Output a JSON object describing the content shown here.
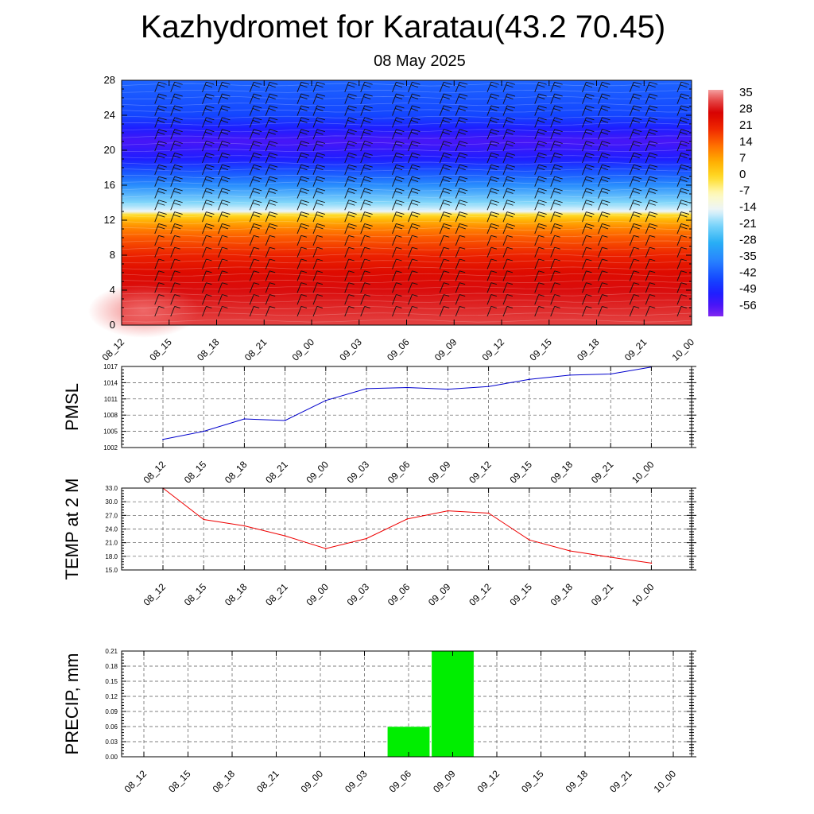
{
  "page": {
    "title": "Kazhydromet for Karatau(43.2 70.45)",
    "date": "08 May 2025"
  },
  "chart_data": [
    {
      "type": "heatmap",
      "title": "",
      "time_labels": [
        "08_12",
        "08_15",
        "08_18",
        "08_21",
        "09_00",
        "09_03",
        "09_06",
        "09_09",
        "09_12",
        "09_15",
        "09_18",
        "09_21",
        "10_00"
      ],
      "y_ticks": [
        0,
        4,
        8,
        12,
        16,
        20,
        24,
        28
      ],
      "ylim": [
        0,
        28
      ],
      "colorbar_labels": [
        "35",
        "28",
        "21",
        "14",
        "7",
        "0",
        "-7",
        "-14",
        "-21",
        "-28",
        "-35",
        "-42",
        "-49",
        "-56"
      ],
      "colorbar_range": [
        -60,
        38
      ],
      "temperature_profile": [
        {
          "level": 0,
          "value": 33
        },
        {
          "level": 2,
          "value": 31
        },
        {
          "level": 4,
          "value": 29
        },
        {
          "level": 6,
          "value": 26
        },
        {
          "level": 8,
          "value": 22
        },
        {
          "level": 10,
          "value": 16
        },
        {
          "level": 11,
          "value": 12
        },
        {
          "level": 12,
          "value": 6
        },
        {
          "level": 12.6,
          "value": 0
        },
        {
          "level": 13,
          "value": -14
        },
        {
          "level": 14,
          "value": -20
        },
        {
          "level": 16,
          "value": -34
        },
        {
          "level": 17.5,
          "value": -42
        },
        {
          "level": 19,
          "value": -50
        },
        {
          "level": 21,
          "value": -55
        },
        {
          "level": 22.5,
          "value": -50
        },
        {
          "level": 24,
          "value": -44
        },
        {
          "level": 28,
          "value": -40
        }
      ],
      "grid": false,
      "wind_barbs": true,
      "colors": {
        "warm": "#d40000",
        "cold": "#2020ff",
        "top": "#8a2be2"
      }
    },
    {
      "type": "line",
      "ylabel": "PMSL",
      "categories": [
        "08_12",
        "08_15",
        "08_18",
        "08_21",
        "09_00",
        "09_03",
        "09_06",
        "09_09",
        "09_12",
        "09_15",
        "09_18",
        "09_21",
        "10_00"
      ],
      "y_ticks": [
        "1002",
        "1005",
        "1008",
        "1011",
        "1014",
        "1017"
      ],
      "ylim": [
        1002,
        1017
      ],
      "series": [
        {
          "values": [
            1003.5,
            1005.0,
            1007.3,
            1007.0,
            1010.7,
            1012.9,
            1013.1,
            1012.8,
            1013.3,
            1014.6,
            1015.4,
            1015.6,
            1016.9
          ]
        }
      ],
      "color": "#0000cc",
      "grid": true
    },
    {
      "type": "line",
      "ylabel": "TEMP at 2 M",
      "categories": [
        "08_12",
        "08_15",
        "08_18",
        "08_21",
        "09_00",
        "09_03",
        "09_06",
        "09_09",
        "09_12",
        "09_15",
        "09_18",
        "09_21",
        "10_00"
      ],
      "y_ticks": [
        "15.0",
        "18.0",
        "21.0",
        "24.0",
        "27.0",
        "30.0",
        "33.0"
      ],
      "ylim": [
        15,
        33
      ],
      "series": [
        {
          "values": [
            33.0,
            26.1,
            24.7,
            22.5,
            19.7,
            21.9,
            26.2,
            28.0,
            27.5,
            21.6,
            19.2,
            17.8,
            16.5
          ]
        }
      ],
      "color": "#ee0000",
      "grid": true
    },
    {
      "type": "bar",
      "ylabel": "PRECIP, mm",
      "categories": [
        "08_12",
        "08_15",
        "08_18",
        "08_21",
        "09_00",
        "09_03",
        "09_06",
        "09_09",
        "09_12",
        "09_15",
        "09_18",
        "09_21",
        "10_00"
      ],
      "y_ticks": [
        "0.00",
        "0.03",
        "0.06",
        "0.09",
        "0.12",
        "0.15",
        "0.18",
        "0.21"
      ],
      "ylim": [
        0,
        0.21
      ],
      "values": [
        0,
        0,
        0,
        0,
        0,
        0,
        0.06,
        0.21,
        0,
        0,
        0,
        0,
        0
      ],
      "color": "#00ee00",
      "grid": true
    }
  ]
}
